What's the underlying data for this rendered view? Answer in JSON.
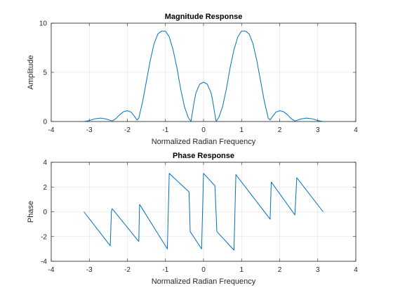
{
  "chart_data": [
    {
      "type": "line",
      "title": "Magnitude Response",
      "xlabel": "Normalized Radian Frequency",
      "ylabel": "Amplitude",
      "xlim": [
        -4,
        4
      ],
      "ylim": [
        0,
        10
      ],
      "xticks": [
        -4,
        -3,
        -2,
        -1,
        0,
        1,
        2,
        3,
        4
      ],
      "yticks": [
        0,
        5,
        10
      ],
      "grid": true,
      "color": "#0072bd",
      "series": [
        {
          "x": [
            -3.1416,
            -3.0,
            -2.85,
            -2.7,
            -2.55,
            -2.4,
            -2.3,
            -2.2,
            -2.1,
            -2.0,
            -1.9,
            -1.8,
            -1.75,
            -1.7,
            -1.6,
            -1.5,
            -1.4,
            -1.3,
            -1.2,
            -1.1,
            -1.0,
            -0.9,
            -0.8,
            -0.7,
            -0.6,
            -0.5,
            -0.4,
            -0.33,
            -0.3,
            -0.25,
            -0.2,
            -0.1,
            0.0,
            0.1,
            0.2,
            0.25,
            0.3,
            0.33,
            0.4,
            0.5,
            0.6,
            0.7,
            0.8,
            0.9,
            1.0,
            1.1,
            1.2,
            1.3,
            1.4,
            1.5,
            1.6,
            1.7,
            1.75,
            1.8,
            1.9,
            2.0,
            2.1,
            2.2,
            2.3,
            2.4,
            2.55,
            2.7,
            2.85,
            3.0,
            3.1416
          ],
          "y": [
            0.0,
            0.1,
            0.28,
            0.35,
            0.25,
            0.05,
            0.3,
            0.7,
            1.0,
            1.1,
            0.95,
            0.45,
            0.15,
            0.35,
            2.0,
            4.1,
            6.2,
            7.9,
            8.9,
            9.2,
            9.2,
            8.6,
            7.3,
            5.5,
            3.3,
            1.5,
            0.4,
            0.0,
            0.7,
            1.9,
            2.9,
            3.8,
            4.0,
            3.8,
            2.9,
            1.9,
            0.7,
            0.0,
            0.4,
            1.5,
            3.3,
            5.5,
            7.3,
            8.6,
            9.2,
            9.2,
            8.9,
            7.9,
            6.2,
            4.1,
            2.0,
            0.35,
            0.15,
            0.45,
            0.95,
            1.1,
            1.0,
            0.7,
            0.3,
            0.05,
            0.25,
            0.35,
            0.28,
            0.1,
            0.0
          ]
        }
      ]
    },
    {
      "type": "line",
      "title": "Phase Response",
      "xlabel": "Normalized Radian Frequency",
      "ylabel": "Phase",
      "xlim": [
        -4,
        4
      ],
      "ylim": [
        -4,
        4
      ],
      "xticks": [
        -4,
        -3,
        -2,
        -1,
        0,
        1,
        2,
        3,
        4
      ],
      "yticks": [
        -4,
        -2,
        0,
        2,
        4
      ],
      "grid": true,
      "color": "#0072bd",
      "series": [
        {
          "x": [
            -3.1416,
            -2.45,
            -2.45,
            -2.42,
            -2.4,
            -1.7,
            -1.7,
            -1.68,
            -0.95,
            -0.95,
            -0.9,
            -0.38,
            -0.38,
            -0.35,
            -0.05,
            -0.05,
            0.0,
            0.3,
            0.3,
            0.35,
            0.8,
            0.8,
            0.85,
            1.75,
            1.75,
            1.78,
            2.4,
            2.4,
            2.45,
            3.1416
          ],
          "y": [
            0.0,
            -2.75,
            -2.75,
            0.0,
            0.25,
            -2.4,
            -2.4,
            0.6,
            -3.0,
            -3.0,
            3.1,
            1.6,
            1.6,
            -1.6,
            -3.0,
            -3.0,
            3.1,
            2.1,
            2.1,
            -1.6,
            -3.1,
            -3.1,
            3.0,
            -0.6,
            -0.6,
            2.4,
            -0.25,
            -0.25,
            2.75,
            0.0
          ]
        }
      ]
    }
  ]
}
